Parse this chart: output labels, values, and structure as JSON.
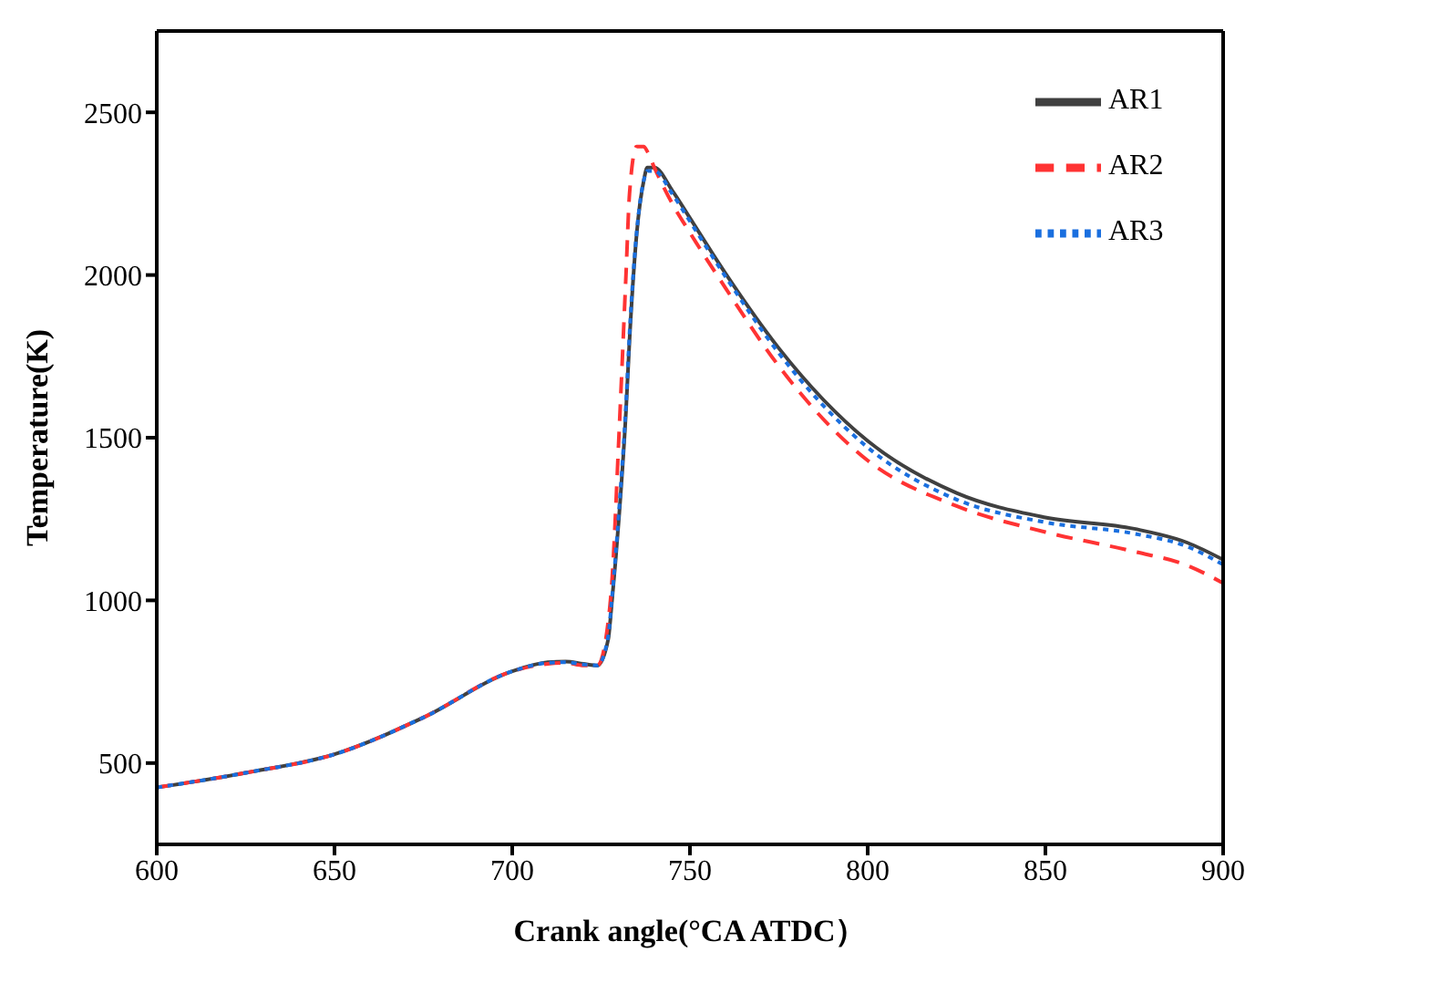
{
  "chart_data": {
    "type": "line",
    "xlabel": "Crank angle(°CA ATDC）",
    "ylabel": "Temperature(K)",
    "xlim": [
      600,
      900
    ],
    "ylim": [
      250,
      2750
    ],
    "xticks": [
      600,
      650,
      700,
      750,
      800,
      850,
      900
    ],
    "yticks": [
      500,
      1000,
      1500,
      2000,
      2500
    ],
    "legend": "top right",
    "grid": false,
    "marker": "none",
    "x": [
      600,
      625,
      650,
      675,
      700,
      710,
      715,
      720,
      724,
      727,
      728,
      730,
      732,
      733,
      735,
      737,
      738,
      740,
      745,
      750,
      760,
      775,
      800,
      825,
      850,
      875,
      890,
      900
    ],
    "series": [
      {
        "name": "AR1",
        "color": "#404040",
        "line_style": "solid",
        "values": [
          425,
          470,
          527,
          640,
          782,
          810,
          812,
          805,
          800,
          880,
          990,
          1250,
          1580,
          1800,
          2125,
          2290,
          2330,
          2330,
          2260,
          2175,
          2005,
          1775,
          1490,
          1330,
          1255,
          1220,
          1177,
          1125
        ]
      },
      {
        "name": "AR2",
        "color": "#ff3333",
        "line_style": "dashed",
        "values": [
          425,
          470,
          527,
          640,
          782,
          805,
          808,
          800,
          800,
          935,
          1050,
          1500,
          2000,
          2250,
          2395,
          2395,
          2380,
          2330,
          2220,
          2130,
          1960,
          1720,
          1430,
          1290,
          1210,
          1150,
          1107,
          1053
        ]
      },
      {
        "name": "AR3",
        "color": "#1a6fdf",
        "line_style": "dotted",
        "values": [
          425,
          470,
          527,
          640,
          782,
          808,
          810,
          803,
          800,
          890,
          1000,
          1270,
          1600,
          1820,
          2130,
          2290,
          2320,
          2320,
          2250,
          2165,
          1995,
          1760,
          1470,
          1310,
          1240,
          1205,
          1165,
          1110
        ]
      }
    ]
  }
}
